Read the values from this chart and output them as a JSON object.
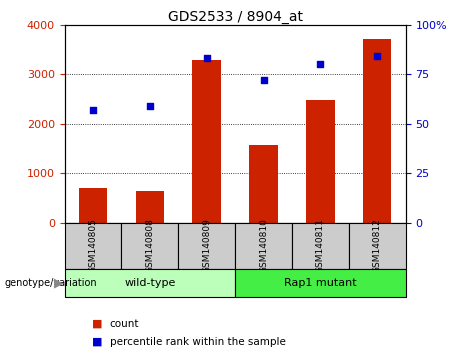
{
  "title": "GDS2533 / 8904_at",
  "categories": [
    "GSM140805",
    "GSM140808",
    "GSM140809",
    "GSM140810",
    "GSM140811",
    "GSM140812"
  ],
  "counts": [
    700,
    640,
    3280,
    1580,
    2480,
    3720
  ],
  "percentile_ranks": [
    57,
    59,
    83,
    72,
    80,
    84
  ],
  "left_ylim": [
    0,
    4000
  ],
  "left_yticks": [
    0,
    1000,
    2000,
    3000,
    4000
  ],
  "right_ylim": [
    0,
    100
  ],
  "right_yticks": [
    0,
    25,
    50,
    75,
    100
  ],
  "bar_color": "#cc2200",
  "dot_color": "#0000cc",
  "groups": [
    {
      "label": "wild-type",
      "indices": [
        0,
        1,
        2
      ],
      "color": "#bbffbb"
    },
    {
      "label": "Rap1 mutant",
      "indices": [
        3,
        4,
        5
      ],
      "color": "#44ee44"
    }
  ],
  "group_label": "genotype/variation",
  "legend_count_label": "count",
  "legend_percentile_label": "percentile rank within the sample",
  "background_color": "#ffffff",
  "plot_bg_color": "#ffffff",
  "axis_label_color_left": "#cc2200",
  "axis_label_color_right": "#0000cc",
  "grid_color": "#000000",
  "sample_box_color": "#cccccc"
}
